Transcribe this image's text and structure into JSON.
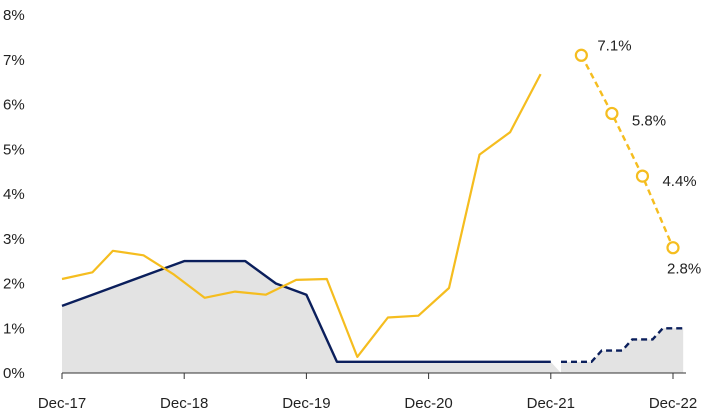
{
  "chart_data": {
    "type": "line",
    "y_ticks": [
      "0%",
      "1%",
      "2%",
      "3%",
      "4%",
      "5%",
      "6%",
      "7%",
      "8%"
    ],
    "ylim": [
      0,
      8
    ],
    "x_tick_labels": [
      "Dec-17",
      "Dec-18",
      "Dec-19",
      "Dec-20",
      "Dec-21",
      "Dec-22"
    ],
    "xlim": [
      "2017-12",
      "2022-12"
    ],
    "grid": false,
    "colors": {
      "inflation": "#F5BD1F",
      "policy_rate": "#0B1F5C",
      "area_fill": "#E3E3E3",
      "axis": "#333333"
    },
    "series": [
      {
        "key": "inflation_actual",
        "style": "solid",
        "points": [
          [
            "2017-12",
            2.1
          ],
          [
            "2018-03",
            2.25
          ],
          [
            "2018-05",
            2.73
          ],
          [
            "2018-08",
            2.63
          ],
          [
            "2018-11",
            2.2
          ],
          [
            "2019-02",
            1.68
          ],
          [
            "2019-05",
            1.82
          ],
          [
            "2019-08",
            1.75
          ],
          [
            "2019-11",
            2.08
          ],
          [
            "2020-02",
            2.1
          ],
          [
            "2020-05",
            0.36
          ],
          [
            "2020-08",
            1.24
          ],
          [
            "2020-11",
            1.28
          ],
          [
            "2021-02",
            1.9
          ],
          [
            "2021-05",
            4.88
          ],
          [
            "2021-08",
            5.38
          ],
          [
            "2021-11",
            6.68
          ]
        ]
      },
      {
        "key": "inflation_forecast",
        "style": "dashed-with-markers",
        "points": [
          [
            "2022-03",
            7.1
          ],
          [
            "2022-06",
            5.8
          ],
          [
            "2022-09",
            4.4
          ],
          [
            "2022-12",
            2.8
          ]
        ],
        "labels": [
          "7.1%",
          "5.8%",
          "4.4%",
          "2.8%"
        ]
      },
      {
        "key": "policy_rate_actual",
        "style": "solid-with-area",
        "points": [
          [
            "2017-12",
            1.5
          ],
          [
            "2018-03",
            1.75
          ],
          [
            "2018-06",
            2.0
          ],
          [
            "2018-09",
            2.25
          ],
          [
            "2018-12",
            2.5
          ],
          [
            "2019-06",
            2.5
          ],
          [
            "2019-09",
            2.0
          ],
          [
            "2019-12",
            1.75
          ],
          [
            "2020-03",
            0.25
          ],
          [
            "2021-12",
            0.25
          ]
        ]
      },
      {
        "key": "policy_rate_forecast",
        "style": "dashed-step",
        "points": [
          [
            "2022-01",
            0.25
          ],
          [
            "2022-04",
            0.25
          ],
          [
            "2022-05",
            0.5
          ],
          [
            "2022-07",
            0.5
          ],
          [
            "2022-08",
            0.75
          ],
          [
            "2022-10",
            0.75
          ],
          [
            "2022-11",
            1.0
          ],
          [
            "2023-01",
            1.0
          ]
        ]
      }
    ]
  }
}
